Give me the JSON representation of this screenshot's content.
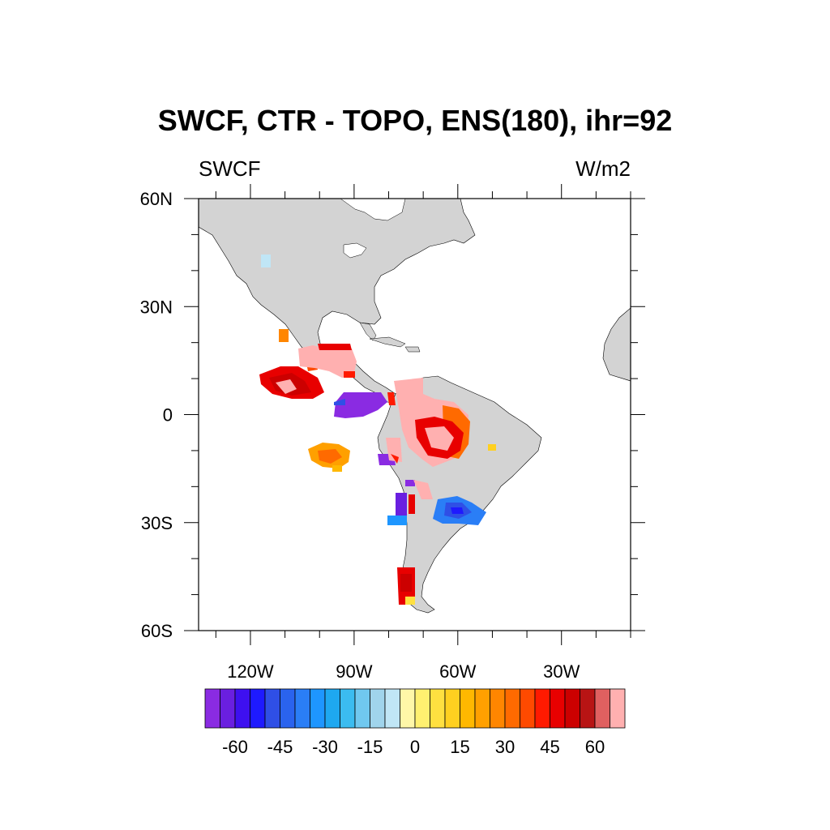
{
  "title": "SWCF, CTR - TOPO, ENS(180), ihr=92",
  "subtitle_left": "SWCF",
  "subtitle_right": "W/m2",
  "map": {
    "lon_range": [
      -135,
      -10
    ],
    "lat_range": [
      -60,
      60
    ],
    "land_color": "#d3d3d3",
    "ocean_color": "#ffffff",
    "lat_ticks": [
      {
        "value": 60,
        "label": "60N"
      },
      {
        "value": 30,
        "label": "30N"
      },
      {
        "value": 0,
        "label": "0"
      },
      {
        "value": -30,
        "label": "30S"
      },
      {
        "value": -60,
        "label": "60S"
      }
    ],
    "lon_ticks": [
      {
        "value": -120,
        "label": "120W"
      },
      {
        "value": -90,
        "label": "90W"
      },
      {
        "value": -60,
        "label": "60W"
      },
      {
        "value": -30,
        "label": "30W"
      }
    ]
  },
  "colorbar": {
    "colors": [
      "#8a2be2",
      "#6a1fe0",
      "#3e10f0",
      "#1e1aff",
      "#2f4fe6",
      "#2a63ee",
      "#2a7ef6",
      "#1e96ff",
      "#1ea8f0",
      "#3bbcf0",
      "#70c8ef",
      "#a0d4ec",
      "#c0e6f6",
      "#fff7a8",
      "#fff070",
      "#ffe040",
      "#ffd020",
      "#ffb800",
      "#ffa000",
      "#ff8600",
      "#ff6a00",
      "#ff4a00",
      "#ff1a00",
      "#e80000",
      "#cc0000",
      "#b81414",
      "#e06060",
      "#ffb0b0"
    ],
    "labels": [
      "-60",
      "-45",
      "-30",
      "-15",
      "0",
      "15",
      "30",
      "45",
      "60"
    ],
    "label_positions": [
      3,
      6,
      9,
      12,
      15,
      18,
      21,
      24,
      27
    ]
  }
}
